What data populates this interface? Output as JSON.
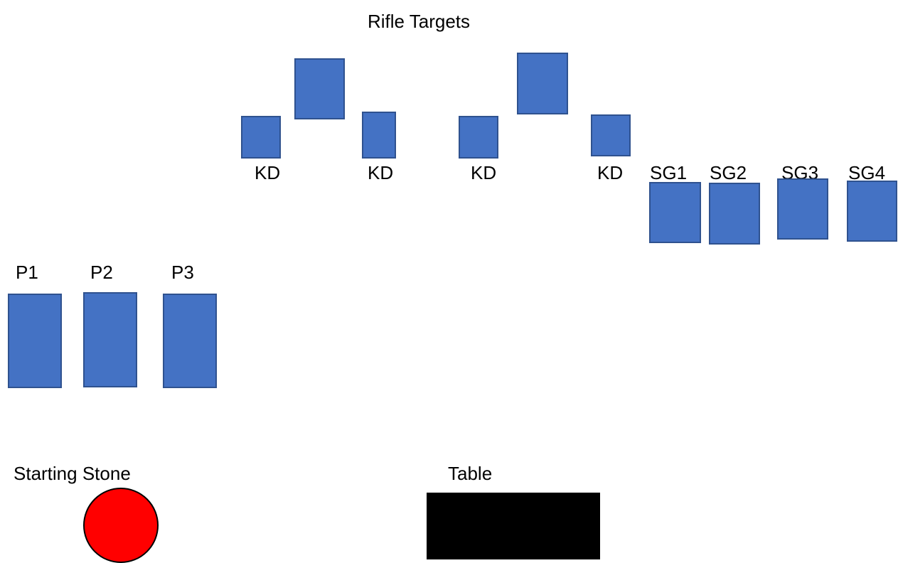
{
  "colors": {
    "target_fill": "#4472c4",
    "target_stroke": "#2f528f",
    "stone_fill": "#ff0000",
    "table_fill": "#000000"
  },
  "title": "Rifle Targets",
  "rifle_targets": {
    "kd_labels": [
      "KD",
      "KD",
      "KD",
      "KD"
    ]
  },
  "shotgun_targets": {
    "labels": [
      "SG1",
      "SG2",
      "SG3",
      "SG4"
    ]
  },
  "pistol_targets": {
    "labels": [
      "P1",
      "P2",
      "P3"
    ]
  },
  "starting_stone": {
    "label": "Starting Stone"
  },
  "table": {
    "label": "Table"
  }
}
